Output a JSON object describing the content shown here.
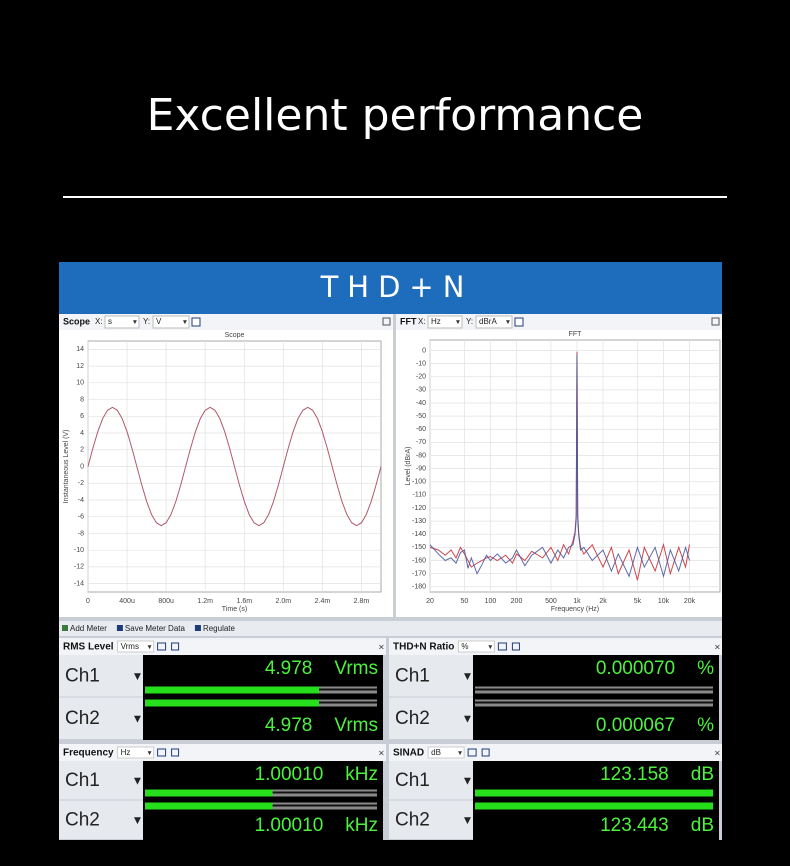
{
  "header": {
    "title": "Excellent performance"
  },
  "banner": {
    "title": "THD+N"
  },
  "scope": {
    "toolbar": {
      "name": "Scope",
      "x_label": "X:",
      "x_unit": "s",
      "y_label": "Y:",
      "y_unit": "V"
    },
    "chart_data": {
      "type": "line",
      "title": "Scope",
      "x_label": "Time (s)",
      "y_label": "Instantaneous Level (V)",
      "x": [
        0,
        5e-05,
        0.0001,
        0.00015,
        0.0002,
        0.00025,
        0.0003,
        0.00035,
        0.0004,
        0.00045,
        0.0005,
        0.00055,
        0.0006,
        0.00065,
        0.0007,
        0.00075,
        0.0008,
        0.00085,
        0.0009,
        0.00095,
        0.001,
        0.00105,
        0.0011,
        0.00115,
        0.0012,
        0.00125,
        0.0013,
        0.00135,
        0.0014,
        0.00145,
        0.0015,
        0.00155,
        0.0016,
        0.00165,
        0.0017,
        0.00175,
        0.0018,
        0.00185,
        0.0019,
        0.00195,
        0.002,
        0.00205,
        0.0021,
        0.00215,
        0.0022,
        0.00225,
        0.0023,
        0.00235,
        0.0024,
        0.00245,
        0.0025,
        0.00255,
        0.0026,
        0.00265,
        0.0027,
        0.00275,
        0.0028,
        0.00285,
        0.0029,
        0.00295,
        0.003
      ],
      "series": [
        {
          "color": "#a8485a",
          "values": [
            0,
            2.18,
            4.16,
            5.72,
            6.72,
            7.07,
            6.72,
            5.72,
            4.16,
            2.18,
            0,
            -2.18,
            -4.16,
            -5.72,
            -6.72,
            -7.07,
            -6.72,
            -5.72,
            -4.16,
            -2.18,
            0,
            2.18,
            4.16,
            5.72,
            6.72,
            7.07,
            6.72,
            5.72,
            4.16,
            2.18,
            0,
            -2.18,
            -4.16,
            -5.72,
            -6.72,
            -7.07,
            -6.72,
            -5.72,
            -4.16,
            -2.18,
            0,
            2.18,
            4.16,
            5.72,
            6.72,
            7.07,
            6.72,
            5.72,
            4.16,
            2.18,
            0,
            -2.18,
            -4.16,
            -5.72,
            -6.72,
            -7.07,
            -6.72,
            -5.72,
            -4.16,
            -2.18,
            0
          ]
        }
      ],
      "xlim": [
        0,
        0.003
      ],
      "xticks": [
        0,
        {
          "value": 0.0004,
          "label": "400u"
        },
        {
          "value": 0.0008,
          "label": "800u"
        },
        {
          "value": 0.0012,
          "label": "1.2m"
        },
        {
          "value": 0.0016,
          "label": "1.6m"
        },
        {
          "value": 0.002,
          "label": "2.0m"
        },
        {
          "value": 0.0024,
          "label": "2.4m"
        },
        {
          "value": 0.0028,
          "label": "2.8m"
        }
      ],
      "ylim": [
        -15,
        15
      ],
      "yticks": [
        14,
        12,
        10,
        8,
        6,
        4,
        2,
        0,
        -2,
        -4,
        -6,
        -8,
        -10,
        -12,
        -14
      ],
      "grid": true
    }
  },
  "fft": {
    "toolbar": {
      "name": "FFT",
      "x_label": "X:",
      "x_unit": "Hz",
      "y_label": "Y:",
      "y_unit": "dBrA"
    },
    "chart_data": {
      "type": "line",
      "title": "FFT",
      "x_label": "Frequency (Hz)",
      "y_label": "Level (dBrA)",
      "xscale": "log",
      "x": [
        20,
        25,
        30,
        35,
        40,
        45,
        50,
        55,
        60,
        70,
        80,
        90,
        100,
        120,
        150,
        180,
        200,
        250,
        300,
        400,
        500,
        600,
        700,
        800,
        900,
        950,
        980,
        1000,
        1020,
        1050,
        1100,
        1200,
        1500,
        2000,
        2500,
        3000,
        4000,
        5000,
        6000,
        8000,
        10000,
        12000,
        15000,
        18000,
        20000
      ],
      "series": [
        {
          "color": "#c8323c",
          "values": [
            -150,
            -152,
            -156,
            -152,
            -158,
            -150,
            -155,
            -160,
            -165,
            -162,
            -160,
            -158,
            -157,
            -160,
            -156,
            -162,
            -155,
            -160,
            -153,
            -158,
            -150,
            -160,
            -148,
            -155,
            -145,
            -138,
            -125,
            -1,
            -125,
            -140,
            -150,
            -155,
            -148,
            -165,
            -150,
            -170,
            -152,
            -175,
            -150,
            -168,
            -148,
            -170,
            -150,
            -165,
            -148
          ]
        },
        {
          "color": "#4a5aa0",
          "values": [
            -148,
            -155,
            -160,
            -158,
            -162,
            -154,
            -152,
            -166,
            -158,
            -170,
            -163,
            -156,
            -160,
            -155,
            -162,
            -158,
            -152,
            -164,
            -156,
            -150,
            -162,
            -152,
            -158,
            -150,
            -148,
            -140,
            -128,
            -3,
            -128,
            -142,
            -152,
            -150,
            -160,
            -152,
            -168,
            -155,
            -172,
            -150,
            -165,
            -150,
            -172,
            -152,
            -168,
            -150,
            -160
          ]
        }
      ],
      "xlim": [
        20,
        45000
      ],
      "xticks": [
        20,
        50,
        100,
        200,
        500,
        {
          "value": 1000,
          "label": "1k"
        },
        {
          "value": 2000,
          "label": "2k"
        },
        {
          "value": 5000,
          "label": "5k"
        },
        {
          "value": 10000,
          "label": "10k"
        },
        {
          "value": 20000,
          "label": "20k"
        }
      ],
      "ylim": [
        -184,
        8
      ],
      "yticks": [
        0,
        -10,
        -20,
        -30,
        -40,
        -50,
        -60,
        -70,
        -80,
        -90,
        -100,
        -110,
        -120,
        -130,
        -140,
        -150,
        -160,
        -170,
        -180
      ],
      "grid": true
    }
  },
  "meter_toolbar": {
    "items": [
      "Add Meter",
      "Save Meter Data",
      "Regulate"
    ]
  },
  "meters": [
    {
      "title": "RMS Level",
      "unit_select": "Vrms",
      "channels": [
        {
          "name": "Ch1",
          "value": "4.978",
          "unit": "Vrms"
        },
        {
          "name": "Ch2",
          "value": "4.978",
          "unit": "Vrms"
        }
      ]
    },
    {
      "title": "THD+N Ratio",
      "unit_select": "%",
      "channels": [
        {
          "name": "Ch1",
          "value": "0.000070",
          "unit": "%"
        },
        {
          "name": "Ch2",
          "value": "0.000067",
          "unit": "%"
        }
      ]
    },
    {
      "title": "Frequency",
      "unit_select": "Hz",
      "channels": [
        {
          "name": "Ch1",
          "value": "1.00010",
          "unit": "kHz"
        },
        {
          "name": "Ch2",
          "value": "1.00010",
          "unit": "kHz"
        }
      ]
    },
    {
      "title": "SINAD",
      "unit_select": "dB",
      "channels": [
        {
          "name": "Ch1",
          "value": "123.158",
          "unit": "dB"
        },
        {
          "name": "Ch2",
          "value": "123.443",
          "unit": "dB"
        }
      ]
    }
  ]
}
